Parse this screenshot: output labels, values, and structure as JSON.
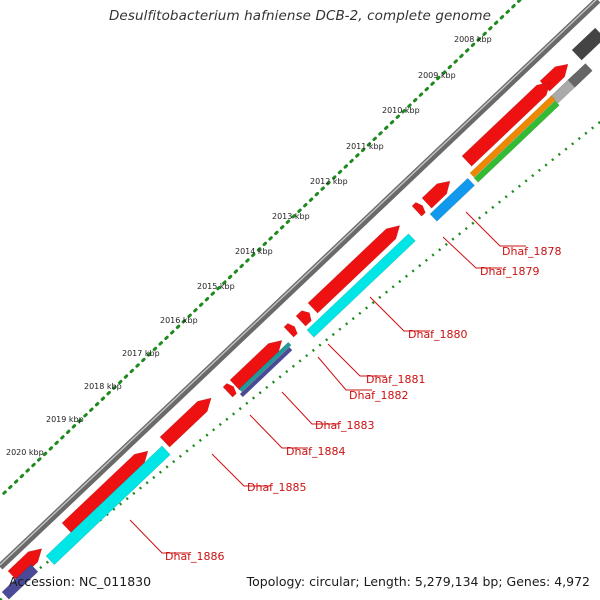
{
  "title": "Desulfitobacterium hafniense DCB-2, complete genome",
  "footer": {
    "accession": "Accession: NC_011830",
    "stats": "Topology: circular; Length: 5,279,134 bp; Genes: 4,972"
  },
  "map": {
    "kbp_markers": [
      "2008 kbp",
      "2009 kbp",
      "2010 kbp",
      "2011 kbp",
      "2012 kbp",
      "2013 kbp",
      "2014 kbp",
      "2015 kbp",
      "2016 kbp",
      "2017 kbp",
      "2018 kbp",
      "2019 kbp",
      "2020 kbp"
    ],
    "gene_labels": [
      "Dhaf_1878",
      "Dhaf_1879",
      "Dhaf_1880",
      "Dhaf_1881",
      "Dhaf_1882",
      "Dhaf_1883",
      "Dhaf_1884",
      "Dhaf_1885",
      "Dhaf_1886"
    ],
    "colors": {
      "backbone": "#7a7a7a",
      "tick_dots": "#1e8a1e",
      "cds_forward": "#ee1111",
      "cog_cyan": "#00e5e5",
      "cog_blue": "#1199ee",
      "cog_orange": "#ee8800",
      "cog_green": "#33bb33",
      "cog_gray": "#aaaaaa",
      "cog_darkgray": "#666666",
      "cog_navy": "#4a4a99",
      "cog_teal": "#209999",
      "label_red": "#cc1111"
    }
  }
}
